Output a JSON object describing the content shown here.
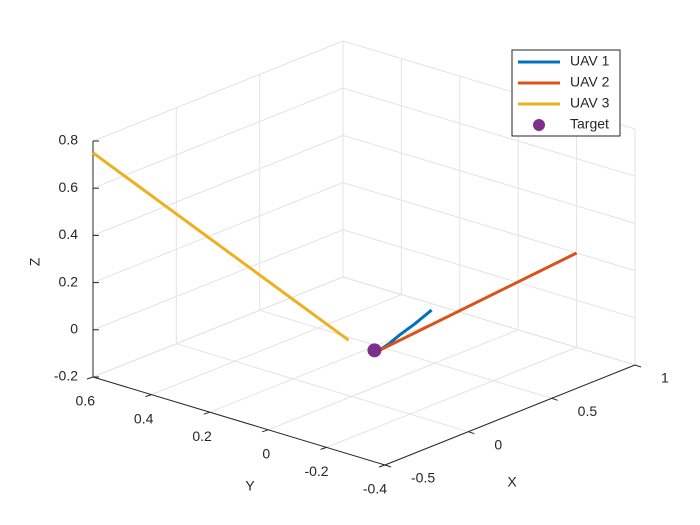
{
  "chart_data": {
    "type": "line3d",
    "xlabel": "X",
    "ylabel": "Y",
    "zlabel": "Z",
    "xlim": [
      -0.5,
      1
    ],
    "ylim": [
      -0.4,
      0.6
    ],
    "zlim": [
      -0.2,
      0.8
    ],
    "xticks": [
      -0.5,
      0,
      0.5,
      1
    ],
    "yticks": [
      -0.4,
      -0.2,
      0,
      0.2,
      0.4,
      0.6
    ],
    "zticks": [
      -0.2,
      0,
      0.2,
      0.4,
      0.6,
      0.8
    ],
    "grid": true,
    "legend": "northeast",
    "series": [
      {
        "name": "UAV 1",
        "color": "#0072BD",
        "mode": "lines",
        "x": [
          0.06,
          0.1,
          0.16,
          0.24,
          0.34
        ],
        "y": [
          -0.06,
          -0.07,
          -0.075,
          -0.08,
          -0.08
        ],
        "z": [
          0,
          0.02,
          0.045,
          0.07,
          0.1
        ]
      },
      {
        "name": "UAV 2",
        "color": "#D95319",
        "mode": "lines",
        "x": [
          0.06,
          1
        ],
        "y": [
          -0.06,
          -0.2
        ],
        "z": [
          0,
          0.2
        ]
      },
      {
        "name": "UAV 3",
        "color": "#EDB120",
        "mode": "lines",
        "x": [
          -0.5,
          0.07
        ],
        "y": [
          0.6,
          0.05
        ],
        "z": [
          0.75,
          0
        ]
      },
      {
        "name": "Target",
        "color": "#7E2F8E",
        "mode": "markers",
        "x": [
          0.05
        ],
        "y": [
          -0.05
        ],
        "z": [
          0
        ]
      }
    ]
  }
}
